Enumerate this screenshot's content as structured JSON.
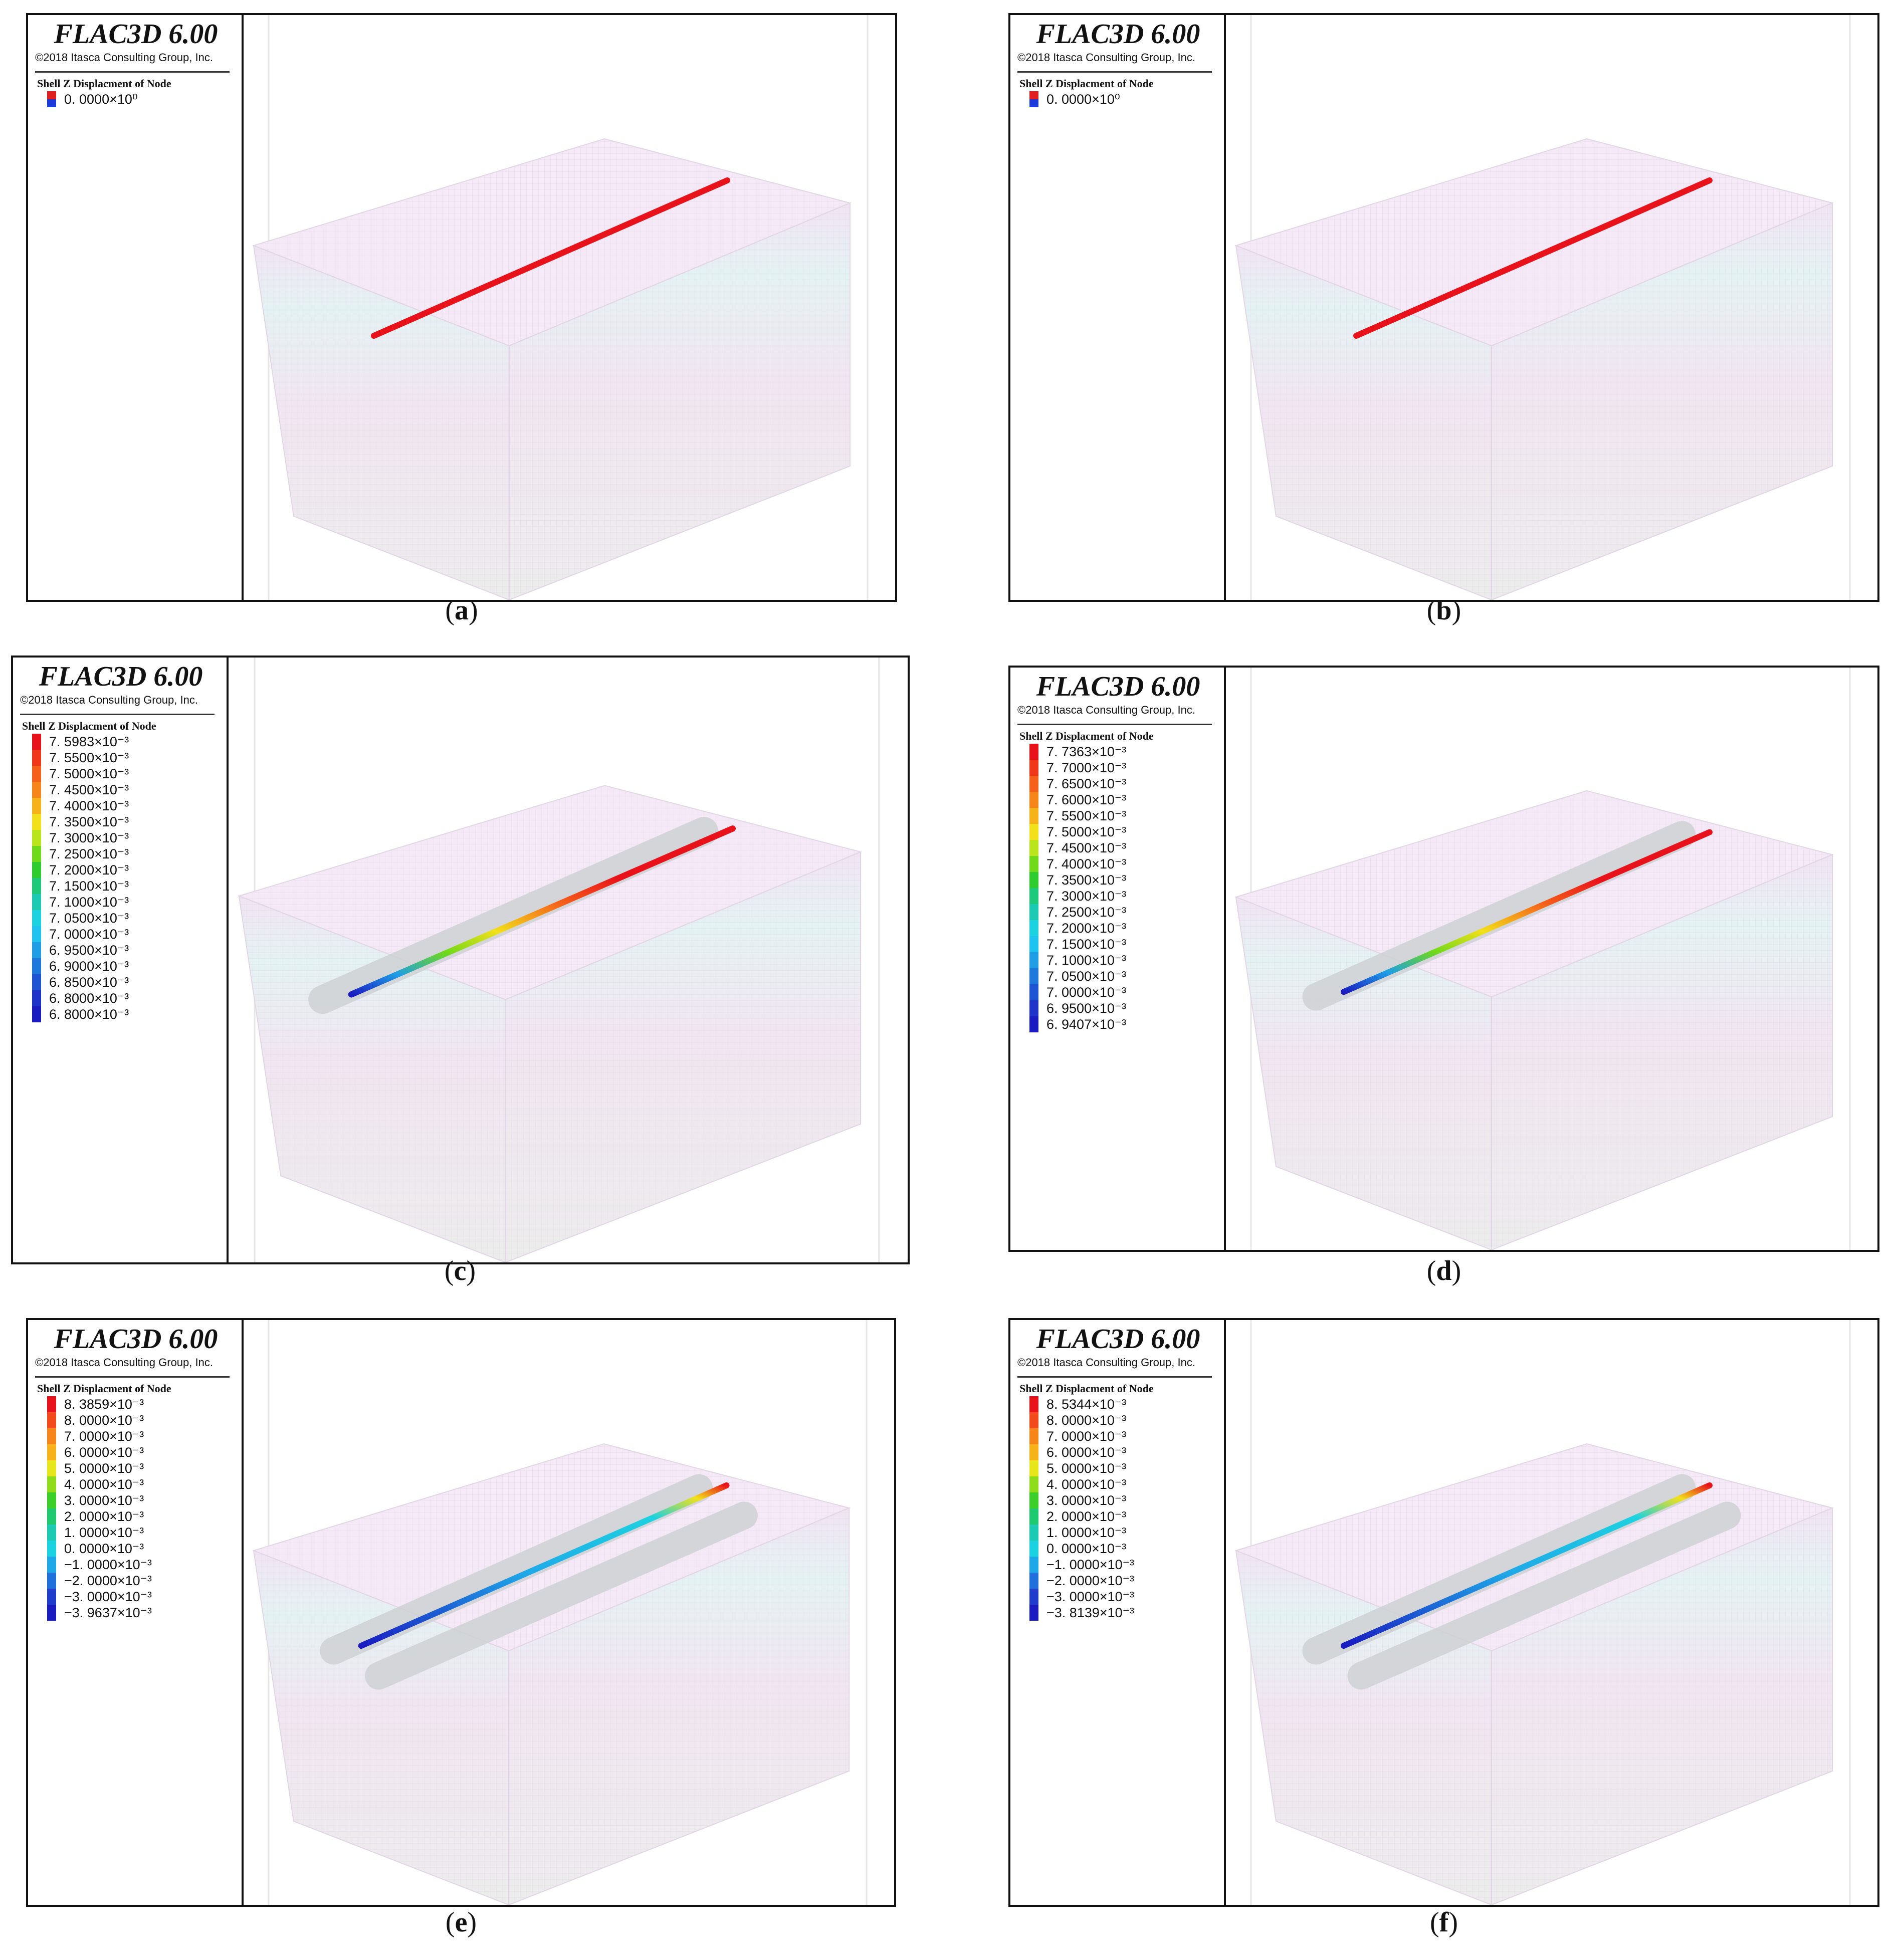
{
  "panels": [
    {
      "id": "a",
      "title": "FLAC3D 6.00",
      "copyright": "©2018 Itasca Consulting Group, Inc.",
      "legend_title": "Shell Z Displacment of Node",
      "legend": [
        {
          "label": "0. 0000×10⁰"
        }
      ],
      "caption_letter": "a",
      "tunnels": 1,
      "shell": "red"
    },
    {
      "id": "b",
      "title": "FLAC3D 6.00",
      "copyright": "©2018 Itasca Consulting Group, Inc.",
      "legend_title": "Shell Z Displacment of Node",
      "legend": [
        {
          "label": "0. 0000×10⁰"
        }
      ],
      "caption_letter": "b",
      "tunnels": 1,
      "shell": "red"
    },
    {
      "id": "c",
      "title": "FLAC3D 6.00",
      "copyright": "©2018 Itasca Consulting Group, Inc.",
      "legend_title": "Shell Z Displacment of Node",
      "legend": [
        {
          "label": "7. 5983×10⁻³",
          "color": "#e8131a"
        },
        {
          "label": "7. 5500×10⁻³",
          "color": "#f0371a"
        },
        {
          "label": "7. 5000×10⁻³",
          "color": "#f5601a"
        },
        {
          "label": "7. 4500×10⁻³",
          "color": "#f7861a"
        },
        {
          "label": "7. 4000×10⁻³",
          "color": "#f7b21a"
        },
        {
          "label": "7. 3500×10⁻³",
          "color": "#f2e01a"
        },
        {
          "label": "7. 3000×10⁻³",
          "color": "#b9e51a"
        },
        {
          "label": "7. 2500×10⁻³",
          "color": "#6fd91a"
        },
        {
          "label": "7. 2000×10⁻³",
          "color": "#2fcc2f"
        },
        {
          "label": "7. 1500×10⁻³",
          "color": "#1ec97a"
        },
        {
          "label": "7. 1000×10⁻³",
          "color": "#1cc9b3"
        },
        {
          "label": "7. 0500×10⁻³",
          "color": "#1dd2e0"
        },
        {
          "label": "7. 0000×10⁻³",
          "color": "#1ec3f0"
        },
        {
          "label": "6. 9500×10⁻³",
          "color": "#1f9ee6"
        },
        {
          "label": "6. 9000×10⁻³",
          "color": "#1f78dc"
        },
        {
          "label": "6. 8500×10⁻³",
          "color": "#1f55d2"
        },
        {
          "label": "6. 8000×10⁻³",
          "color": "#1f33c9"
        },
        {
          "label": "6. 8000×10⁻³",
          "color": "#1a1cc0"
        }
      ],
      "caption_letter": "c",
      "tunnels": 1,
      "shell": "gradient"
    },
    {
      "id": "d",
      "title": "FLAC3D 6.00",
      "copyright": "©2018 Itasca Consulting Group, Inc.",
      "legend_title": "Shell Z Displacment of Node",
      "legend": [
        {
          "label": "7. 7363×10⁻³",
          "color": "#e8131a"
        },
        {
          "label": "7. 7000×10⁻³",
          "color": "#f0371a"
        },
        {
          "label": "7. 6500×10⁻³",
          "color": "#f5601a"
        },
        {
          "label": "7. 6000×10⁻³",
          "color": "#f7861a"
        },
        {
          "label": "7. 5500×10⁻³",
          "color": "#f7b21a"
        },
        {
          "label": "7. 5000×10⁻³",
          "color": "#f2e01a"
        },
        {
          "label": "7. 4500×10⁻³",
          "color": "#b9e51a"
        },
        {
          "label": "7. 4000×10⁻³",
          "color": "#6fd91a"
        },
        {
          "label": "7. 3500×10⁻³",
          "color": "#2fcc2f"
        },
        {
          "label": "7. 3000×10⁻³",
          "color": "#1ec97a"
        },
        {
          "label": "7. 2500×10⁻³",
          "color": "#1cc9b3"
        },
        {
          "label": "7. 2000×10⁻³",
          "color": "#1dd2e0"
        },
        {
          "label": "7. 1500×10⁻³",
          "color": "#1ec3f0"
        },
        {
          "label": "7. 1000×10⁻³",
          "color": "#1f9ee6"
        },
        {
          "label": "7. 0500×10⁻³",
          "color": "#1f78dc"
        },
        {
          "label": "7. 0000×10⁻³",
          "color": "#1f55d2"
        },
        {
          "label": "6. 9500×10⁻³",
          "color": "#1f33c9"
        },
        {
          "label": "6. 9407×10⁻³",
          "color": "#1a1cc0"
        }
      ],
      "caption_letter": "d",
      "tunnels": 1,
      "shell": "gradient"
    },
    {
      "id": "e",
      "title": "FLAC3D 6.00",
      "copyright": "©2018 Itasca Consulting Group, Inc.",
      "legend_title": "Shell Z Displacment of Node",
      "legend": [
        {
          "label": "8. 3859×10⁻³",
          "color": "#e8131a"
        },
        {
          "label": "8. 0000×10⁻³",
          "color": "#f24a1a"
        },
        {
          "label": "7. 0000×10⁻³",
          "color": "#f7861a"
        },
        {
          "label": "6. 0000×10⁻³",
          "color": "#f7b21a"
        },
        {
          "label": "5. 0000×10⁻³",
          "color": "#e6e61a"
        },
        {
          "label": "4. 0000×10⁻³",
          "color": "#8fdc1a"
        },
        {
          "label": "3. 0000×10⁻³",
          "color": "#3ccf2a"
        },
        {
          "label": "2. 0000×10⁻³",
          "color": "#1ec970"
        },
        {
          "label": "1. 0000×10⁻³",
          "color": "#1cc9b3"
        },
        {
          "label": "0. 0000×10⁻³",
          "color": "#1dd2e0"
        },
        {
          "label": "−1. 0000×10⁻³",
          "color": "#1fa8e8"
        },
        {
          "label": "−2. 0000×10⁻³",
          "color": "#1f70da"
        },
        {
          "label": "−3. 0000×10⁻³",
          "color": "#1f3ccb"
        },
        {
          "label": "−3. 9637×10⁻³",
          "color": "#1a1cc0"
        }
      ],
      "caption_letter": "e",
      "tunnels": 2,
      "shell": "gradient2"
    },
    {
      "id": "f",
      "title": "FLAC3D 6.00",
      "copyright": "©2018 Itasca Consulting Group, Inc.",
      "legend_title": "Shell Z Displacment of Node",
      "legend": [
        {
          "label": "8. 5344×10⁻³",
          "color": "#e8131a"
        },
        {
          "label": "8. 0000×10⁻³",
          "color": "#f24a1a"
        },
        {
          "label": "7. 0000×10⁻³",
          "color": "#f7861a"
        },
        {
          "label": "6. 0000×10⁻³",
          "color": "#f7b21a"
        },
        {
          "label": "5. 0000×10⁻³",
          "color": "#e6e61a"
        },
        {
          "label": "4. 0000×10⁻³",
          "color": "#8fdc1a"
        },
        {
          "label": "3. 0000×10⁻³",
          "color": "#3ccf2a"
        },
        {
          "label": "2. 0000×10⁻³",
          "color": "#1ec970"
        },
        {
          "label": "1. 0000×10⁻³",
          "color": "#1cc9b3"
        },
        {
          "label": "0. 0000×10⁻³",
          "color": "#1dd2e0"
        },
        {
          "label": "−1. 0000×10⁻³",
          "color": "#1fa8e8"
        },
        {
          "label": "−2. 0000×10⁻³",
          "color": "#1f70da"
        },
        {
          "label": "−3. 0000×10⁻³",
          "color": "#1f3ccb"
        },
        {
          "label": "−3. 8139×10⁻³",
          "color": "#1a1cc0"
        }
      ],
      "caption_letter": "f",
      "tunnels": 2,
      "shell": "gradient2"
    }
  ]
}
